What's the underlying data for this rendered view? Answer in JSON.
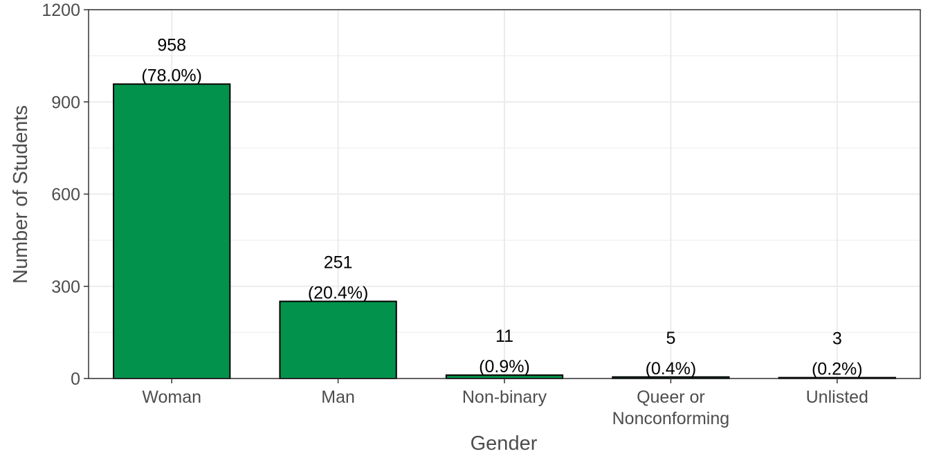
{
  "chart_data": {
    "type": "bar",
    "categories": [
      [
        "Woman"
      ],
      [
        "Man"
      ],
      [
        "Non-binary"
      ],
      [
        "Queer or",
        "Nonconforming"
      ],
      [
        "Unlisted"
      ]
    ],
    "values": [
      958,
      251,
      11,
      5,
      3
    ],
    "data_labels": [
      [
        "958",
        "(78.0%)"
      ],
      [
        "251",
        "(20.4%)"
      ],
      [
        "11",
        "(0.9%)"
      ],
      [
        "5",
        "(0.4%)"
      ],
      [
        "3",
        "(0.2%)"
      ]
    ],
    "xlabel": "Gender",
    "ylabel": "Number of Students",
    "ylim": [
      0,
      1200
    ],
    "yticks": [
      0,
      300,
      600,
      900,
      1200
    ],
    "grid": true,
    "legend": "none",
    "colors": {
      "bar": "#02924c",
      "bar_outline": "#000000",
      "grid": "#ebebeb",
      "panel_border": "#333333"
    }
  }
}
